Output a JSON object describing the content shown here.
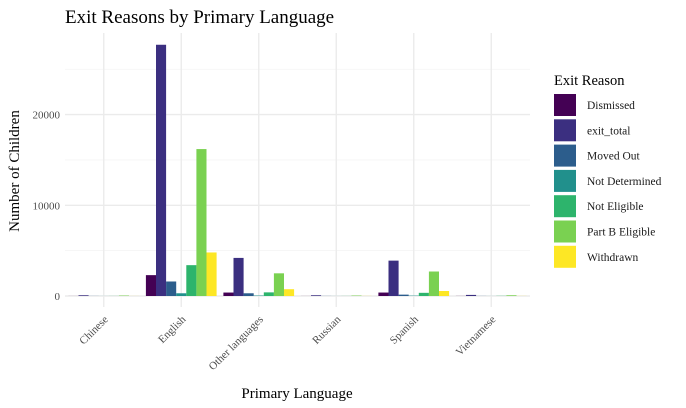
{
  "chart_data": {
    "type": "bar",
    "title": "Exit Reasons by Primary Language",
    "xlabel": "Primary Language",
    "ylabel": "Number of Children",
    "categories": [
      "Chinese",
      "English",
      "Other languages",
      "Russian",
      "Spanish",
      "Vietnamese"
    ],
    "ylim": [
      0,
      28000
    ],
    "yticks": [
      0,
      10000,
      20000
    ],
    "ytick_labels": [
      "0",
      "10000",
      "20000"
    ],
    "grid": true,
    "legend_title": "Exit Reason",
    "legend_position": "right",
    "series": [
      {
        "name": "Dismissed",
        "color": "#440154",
        "values": [
          5,
          2300,
          380,
          5,
          380,
          10
        ]
      },
      {
        "name": "exit_total",
        "color": "#3B2F80",
        "values": [
          80,
          27700,
          4200,
          80,
          3900,
          120
        ]
      },
      {
        "name": "Moved Out",
        "color": "#2C5D8C",
        "values": [
          10,
          1600,
          300,
          10,
          150,
          10
        ]
      },
      {
        "name": "Not Determined",
        "color": "#21908C",
        "values": [
          5,
          300,
          50,
          5,
          40,
          5
        ]
      },
      {
        "name": "Not Eligible",
        "color": "#2DB46C",
        "values": [
          10,
          3400,
          400,
          10,
          350,
          20
        ]
      },
      {
        "name": "Part B Eligible",
        "color": "#7AD151",
        "values": [
          50,
          16200,
          2500,
          50,
          2700,
          80
        ]
      },
      {
        "name": "Withdrawn",
        "color": "#FDE725",
        "values": [
          5,
          4800,
          750,
          10,
          550,
          10
        ]
      }
    ]
  }
}
